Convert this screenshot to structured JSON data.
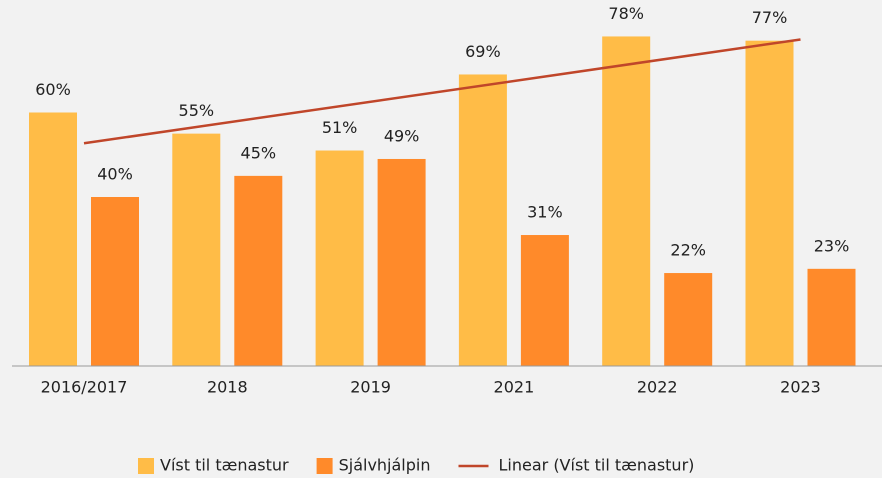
{
  "chart_data": {
    "type": "bar",
    "categories": [
      "2016/2017",
      "2018",
      "2019",
      "2021",
      "2022",
      "2023"
    ],
    "series": [
      {
        "name": "Víst til tænastur",
        "color": "#ffbc47",
        "values": [
          60,
          55,
          51,
          69,
          78,
          77
        ],
        "value_labels": [
          "60%",
          "55%",
          "51%",
          "69%",
          "78%",
          "77%"
        ]
      },
      {
        "name": "Sjálvhjálpin",
        "color": "#ff8a2a",
        "values": [
          40,
          45,
          49,
          31,
          22,
          23
        ],
        "value_labels": [
          "40%",
          "45%",
          "49%",
          "31%",
          "22%",
          "23%"
        ]
      }
    ],
    "trendline": {
      "name": "Linear (Víst til tænastur)",
      "color": "#c0462a",
      "series": 0
    },
    "ylim": [
      0,
      80
    ]
  }
}
